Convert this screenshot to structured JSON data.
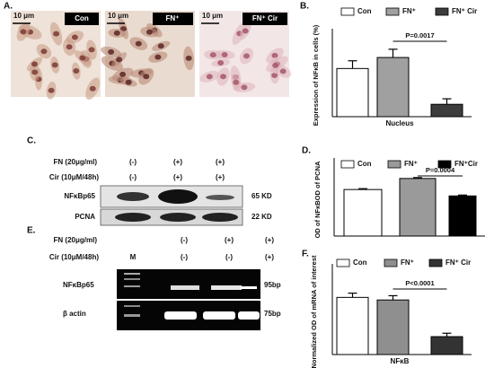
{
  "panel_labels": [
    "A.",
    "B.",
    "C.",
    "D.",
    "E.",
    "F."
  ],
  "micrographs": [
    {
      "scale": "10 μm",
      "label": "Con"
    },
    {
      "scale": "10 μm",
      "label": "FN⁺"
    },
    {
      "scale": "10 μm",
      "label": "FN⁺ Cir"
    }
  ],
  "western_blot": {
    "conditions": [
      {
        "name": "FN (20μg/ml)",
        "lanes": [
          "(-)",
          "(+)",
          "(+)"
        ]
      },
      {
        "name": "Cir (10μM/48h)",
        "lanes": [
          "(-)",
          "(+)",
          "(+)"
        ]
      }
    ],
    "bands": [
      {
        "name": "NFκBp65",
        "size": "65 KD"
      },
      {
        "name": "PCNA",
        "size": "22 KD"
      }
    ]
  },
  "pcr_gel": {
    "conditions": [
      {
        "name": "FN (20μg/ml)",
        "lanes": [
          "(-)",
          "(+)",
          "(+)"
        ]
      },
      {
        "name": "Cir (10μM/48h)",
        "lanes": [
          "(-)",
          "(-)",
          "(+)"
        ]
      }
    ],
    "marker": "M",
    "bands": [
      {
        "name": "NFκBp65",
        "size": "95bp"
      },
      {
        "name": "β actin",
        "size": "75bp"
      }
    ]
  },
  "chart_data": [
    {
      "type": "bar",
      "ylabel": "Expression of NFκB in cells (%)",
      "categories": [
        "Nucleus"
      ],
      "ylim": [
        0,
        30
      ],
      "annotation": "P=0.0017",
      "series": [
        {
          "name": "Con",
          "color": "#ffffff",
          "values": [
            17.5
          ],
          "errors": [
            2.8
          ]
        },
        {
          "name": "FN⁺",
          "color": "#a0a0a0",
          "values": [
            21.5
          ],
          "errors": [
            3
          ]
        },
        {
          "name": "FN⁺ Cir",
          "color": "#3c3c3c",
          "values": [
            4.5
          ],
          "errors": [
            2
          ]
        }
      ]
    },
    {
      "type": "bar",
      "ylabel": "OD of NFκBOD of PCNA",
      "categories": [
        null
      ],
      "ylim": [
        0,
        1.25
      ],
      "annotation": "P=0.0004",
      "series": [
        {
          "name": "Con",
          "color": "#ffffff",
          "values": [
            0.8
          ],
          "errors": [
            0.015
          ]
        },
        {
          "name": "FN⁺",
          "color": "#9a9a9a",
          "values": [
            0.99
          ],
          "errors": [
            0.015
          ]
        },
        {
          "name": "FN⁺Cir",
          "color": "#000000",
          "values": [
            0.69
          ],
          "errors": [
            0.015
          ]
        }
      ]
    },
    {
      "type": "bar",
      "ylabel": "Normalized OD of mRNA of interest",
      "categories": [
        "NFκB"
      ],
      "ylim": [
        0,
        1
      ],
      "annotation": "P<0.0001",
      "series": [
        {
          "name": "Con",
          "color": "#ffffff",
          "values": [
            0.67
          ],
          "errors": [
            0.05
          ]
        },
        {
          "name": "FN⁺",
          "color": "#8f8f8f",
          "values": [
            0.64
          ],
          "errors": [
            0.05
          ]
        },
        {
          "name": "FN⁺ Cir",
          "color": "#333333",
          "values": [
            0.21
          ],
          "errors": [
            0.04
          ]
        }
      ]
    }
  ]
}
